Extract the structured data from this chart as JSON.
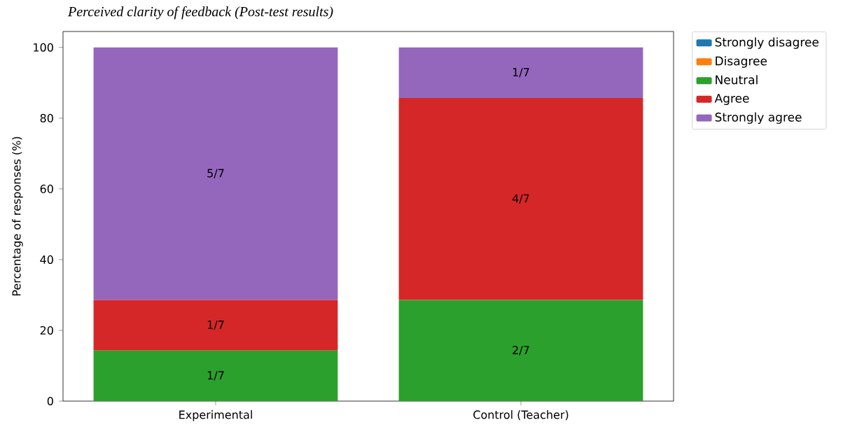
{
  "chart_data": {
    "type": "bar",
    "stacked": true,
    "title": "Perceived clarity of feedback (Post-test results)",
    "ylabel": "Percentage of responses (%)",
    "categories": [
      "Experimental",
      "Control (Teacher)"
    ],
    "series": [
      {
        "name": "Strongly disagree",
        "color": "#1f77b4",
        "values": [
          0,
          0
        ],
        "value_labels": [
          null,
          null
        ]
      },
      {
        "name": "Disagree",
        "color": "#ff7f0e",
        "values": [
          0,
          0
        ],
        "value_labels": [
          null,
          null
        ]
      },
      {
        "name": "Neutral",
        "color": "#2ca02c",
        "values": [
          14.3,
          28.6
        ],
        "value_labels": [
          "1/7",
          "2/7"
        ]
      },
      {
        "name": "Agree",
        "color": "#d62728",
        "values": [
          14.3,
          57.1
        ],
        "value_labels": [
          "1/7",
          "4/7"
        ]
      },
      {
        "name": "Strongly agree",
        "color": "#9467bd",
        "values": [
          71.4,
          14.3
        ],
        "value_labels": [
          "5/7",
          "1/7"
        ]
      }
    ],
    "ylim": [
      0,
      104.5
    ],
    "yticks": [
      0,
      20,
      40,
      60,
      80,
      100
    ],
    "legend": "top right"
  }
}
